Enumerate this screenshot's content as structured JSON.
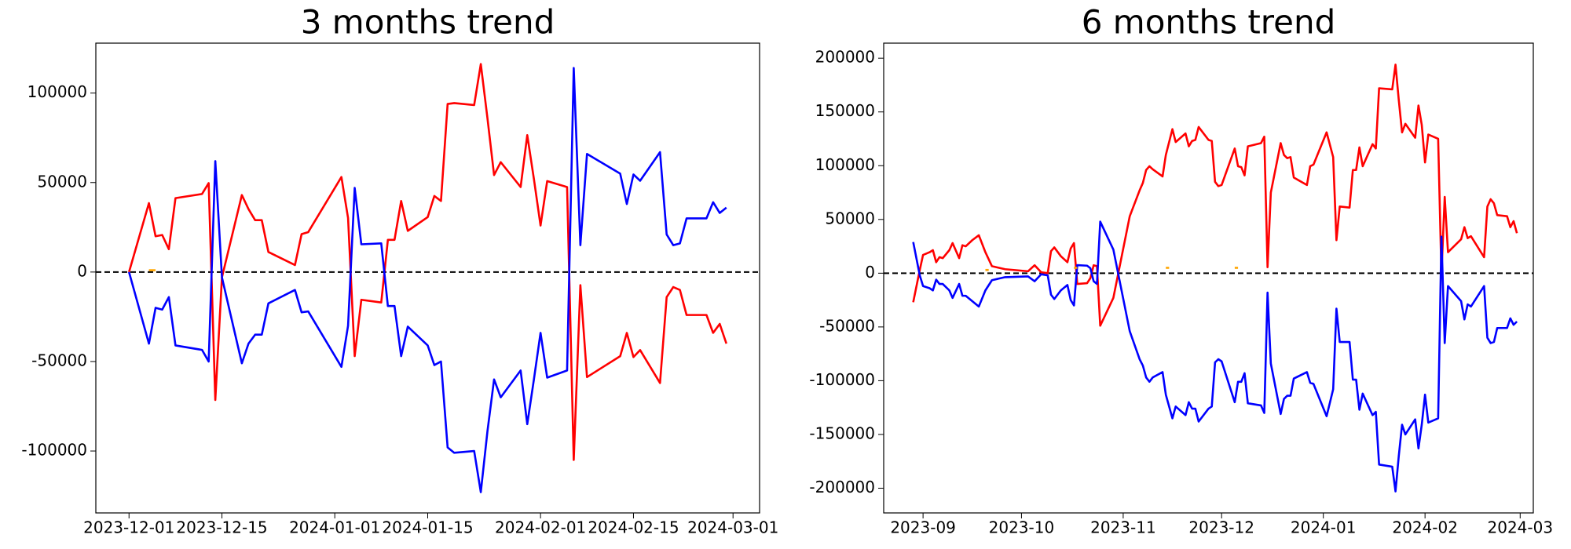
{
  "chart_data": [
    {
      "type": "line",
      "title": "3 months trend",
      "x": [
        "2023-12-01",
        "2023-12-04",
        "2023-12-05",
        "2023-12-06",
        "2023-12-07",
        "2023-12-08",
        "2023-12-12",
        "2023-12-13",
        "2023-12-14",
        "2023-12-15",
        "2023-12-18",
        "2023-12-19",
        "2023-12-20",
        "2023-12-21",
        "2023-12-22",
        "2023-12-26",
        "2023-12-27",
        "2023-12-28",
        "2024-01-02",
        "2024-01-03",
        "2024-01-04",
        "2024-01-05",
        "2024-01-08",
        "2024-01-09",
        "2024-01-10",
        "2024-01-11",
        "2024-01-12",
        "2024-01-15",
        "2024-01-16",
        "2024-01-17",
        "2024-01-18",
        "2024-01-19",
        "2024-01-22",
        "2024-01-23",
        "2024-01-24",
        "2024-01-25",
        "2024-01-26",
        "2024-01-29",
        "2024-01-30",
        "2024-01-31",
        "2024-02-01",
        "2024-02-02",
        "2024-02-05",
        "2024-02-06",
        "2024-02-07",
        "2024-02-08",
        "2024-02-13",
        "2024-02-14",
        "2024-02-15",
        "2024-02-16",
        "2024-02-19",
        "2024-02-20",
        "2024-02-21",
        "2024-02-22",
        "2024-02-23",
        "2024-02-26",
        "2024-02-27",
        "2024-02-28",
        "2024-02-29"
      ],
      "series": [
        {
          "color": "#ff0000",
          "values": [
            0,
            38500,
            20000,
            20700,
            12800,
            41300,
            43600,
            49700,
            -71500,
            -3000,
            43000,
            35200,
            29000,
            29000,
            11200,
            3900,
            21200,
            22300,
            53100,
            30200,
            -47000,
            -15500,
            -17000,
            18000,
            18000,
            39700,
            23000,
            30700,
            42500,
            39700,
            93900,
            94400,
            93300,
            116200,
            86000,
            54200,
            61400,
            47500,
            76500,
            52000,
            26000,
            50800,
            47500,
            -105000,
            -7300,
            -58700,
            -47000,
            -34000,
            -47500,
            -43600,
            -62000,
            -14000,
            -8400,
            -10000,
            -24000,
            -24000,
            -34000,
            -29000,
            -40000
          ]
        },
        {
          "color": "#0000ff",
          "values": [
            0,
            -40000,
            -20000,
            -21000,
            -14000,
            -41000,
            -43500,
            -50000,
            62000,
            -3000,
            -51000,
            -40000,
            -35000,
            -35000,
            -17500,
            -10000,
            -22500,
            -22000,
            -53000,
            -30000,
            47000,
            15500,
            16000,
            -19000,
            -19000,
            -47000,
            -30500,
            -41000,
            -52000,
            -50000,
            -98000,
            -101000,
            -100000,
            -123000,
            -89000,
            -60000,
            -70000,
            -55000,
            -85000,
            -60000,
            -34000,
            -59000,
            -55000,
            114000,
            15000,
            66000,
            55000,
            38000,
            54500,
            51000,
            67000,
            21000,
            15000,
            16000,
            30000,
            30000,
            39000,
            33000,
            36000
          ]
        },
        {
          "color": "#ffa500",
          "x": [
            "2023-12-04",
            "2023-12-05"
          ],
          "values": [
            1000,
            1000
          ]
        }
      ],
      "hline": 0,
      "xlim": [
        "2023-11-26",
        "2024-03-05"
      ],
      "xticks": [
        "2023-12-01",
        "2023-12-15",
        "2024-01-01",
        "2024-01-15",
        "2024-02-01",
        "2024-02-15",
        "2024-03-01"
      ],
      "ylim": [
        -134600,
        127900
      ],
      "yticks": [
        -100000,
        -50000,
        0,
        50000,
        100000
      ]
    },
    {
      "type": "line",
      "title": "6 months trend",
      "x": [
        "2023-08-29",
        "2023-08-31",
        "2023-09-01",
        "2023-09-03",
        "2023-09-04",
        "2023-09-05",
        "2023-09-06",
        "2023-09-07",
        "2023-09-09",
        "2023-09-10",
        "2023-09-12",
        "2023-09-13",
        "2023-09-14",
        "2023-09-16",
        "2023-09-18",
        "2023-09-20",
        "2023-09-22",
        "2023-09-26",
        "2023-10-03",
        "2023-10-05",
        "2023-10-07",
        "2023-10-09",
        "2023-10-10",
        "2023-10-11",
        "2023-10-13",
        "2023-10-15",
        "2023-10-16",
        "2023-10-17",
        "2023-10-18",
        "2023-10-21",
        "2023-10-22",
        "2023-10-23",
        "2023-10-24",
        "2023-10-25",
        "2023-10-29",
        "2023-11-03",
        "2023-11-06",
        "2023-11-07",
        "2023-11-08",
        "2023-11-09",
        "2023-11-10",
        "2023-11-13",
        "2023-11-14",
        "2023-11-16",
        "2023-11-17",
        "2023-11-20",
        "2023-11-21",
        "2023-11-22",
        "2023-11-23",
        "2023-11-24",
        "2023-11-27",
        "2023-11-28",
        "2023-11-29",
        "2023-11-30",
        "2023-12-01",
        "2023-12-05",
        "2023-12-06",
        "2023-12-07",
        "2023-12-08",
        "2023-12-09",
        "2023-12-13",
        "2023-12-14",
        "2023-12-15",
        "2023-12-16",
        "2023-12-19",
        "2023-12-20",
        "2023-12-21",
        "2023-12-22",
        "2023-12-23",
        "2023-12-27",
        "2023-12-28",
        "2023-12-29",
        "2024-01-02",
        "2024-01-04",
        "2024-01-05",
        "2024-01-06",
        "2024-01-09",
        "2024-01-10",
        "2024-01-11",
        "2024-01-12",
        "2024-01-13",
        "2024-01-16",
        "2024-01-17",
        "2024-01-18",
        "2024-01-22",
        "2024-01-23",
        "2024-01-24",
        "2024-01-25",
        "2024-01-26",
        "2024-01-29",
        "2024-01-30",
        "2024-01-31",
        "2024-02-01",
        "2024-02-02",
        "2024-02-05",
        "2024-02-06",
        "2024-02-07",
        "2024-02-08",
        "2024-02-12",
        "2024-02-13",
        "2024-02-14",
        "2024-02-15",
        "2024-02-19",
        "2024-02-20",
        "2024-02-21",
        "2024-02-22",
        "2024-02-23",
        "2024-02-26",
        "2024-02-27",
        "2024-02-28",
        "2024-02-29"
      ],
      "series": [
        {
          "color": "#ff0000",
          "values": [
            -27000,
            3000,
            17000,
            19500,
            21400,
            10200,
            14900,
            14000,
            21400,
            28000,
            14000,
            26000,
            25000,
            30700,
            35300,
            19500,
            6500,
            3700,
            1800,
            7400,
            900,
            0,
            20500,
            24000,
            15800,
            10200,
            23000,
            28000,
            -10000,
            -9300,
            -4600,
            7400,
            6500,
            -48900,
            -23000,
            53000,
            77000,
            84000,
            96000,
            99500,
            96700,
            90000,
            110000,
            134000,
            122000,
            130000,
            118000,
            123000,
            124000,
            136000,
            124000,
            123000,
            85000,
            81000,
            82000,
            116000,
            99500,
            98600,
            91000,
            118000,
            121000,
            127000,
            5600,
            75000,
            121000,
            110000,
            107000,
            108000,
            89000,
            82000,
            99500,
            101000,
            131000,
            108000,
            30700,
            62000,
            61000,
            96000,
            96000,
            117000,
            99500,
            120000,
            116000,
            172000,
            171000,
            194000,
            161000,
            131000,
            139000,
            126000,
            156000,
            138000,
            103000,
            129000,
            125000,
            -1000,
            71000,
            19500,
            31600,
            42800,
            32600,
            34400,
            14900,
            62000,
            68800,
            65000,
            54000,
            53000,
            42800,
            48400,
            37200
          ]
        },
        {
          "color": "#0000ff",
          "values": [
            29000,
            -2000,
            -12000,
            -14000,
            -16000,
            -6000,
            -10000,
            -10000,
            -16000,
            -23000,
            -10000,
            -21000,
            -21000,
            -26000,
            -31000,
            -16000,
            -6500,
            -3700,
            -3000,
            -7500,
            -1000,
            -2000,
            -20000,
            -24000,
            -16000,
            -11000,
            -25000,
            -30000,
            7500,
            7000,
            4600,
            -7500,
            -10000,
            48000,
            22000,
            -54000,
            -80000,
            -86000,
            -97000,
            -101000,
            -97000,
            -92000,
            -113000,
            -135000,
            -124000,
            -132000,
            -120000,
            -126000,
            -126000,
            -138000,
            -126000,
            -124000,
            -83000,
            -80000,
            -82000,
            -120000,
            -101000,
            -101000,
            -93000,
            -121000,
            -123000,
            -130000,
            -18000,
            -84000,
            -131000,
            -117000,
            -114000,
            -114000,
            -98000,
            -92000,
            -102000,
            -103000,
            -133000,
            -108000,
            -33000,
            -64000,
            -64000,
            -99000,
            -99000,
            -127000,
            -112000,
            -132000,
            -129000,
            -178000,
            -180000,
            -203000,
            -170000,
            -141000,
            -150000,
            -136000,
            -163000,
            -141000,
            -113000,
            -139000,
            -135000,
            34000,
            -65000,
            -12000,
            -26000,
            -43000,
            -29000,
            -31000,
            -12000,
            -60000,
            -65000,
            -64000,
            -51000,
            -51000,
            -42000,
            -48000,
            -45000
          ]
        },
        {
          "color": "#ffa500",
          "x": [
            "2023-09-20",
            "2023-09-21",
            "2023-09-22",
            "2023-10-17",
            "2023-10-18",
            "2023-10-19",
            "2023-11-14",
            "2023-11-15",
            "2023-11-16",
            "2023-12-05",
            "2023-12-06"
          ],
          "values": [
            3000,
            3000,
            null,
            5000,
            5000,
            null,
            5000,
            5000,
            null,
            5000,
            5000
          ]
        }
      ],
      "hline": 0,
      "xlim": [
        "2023-08-20",
        "2024-03-05"
      ],
      "xticks": [
        "2023-09",
        "2023-10",
        "2023-11",
        "2023-12",
        "2024-01",
        "2024-02",
        "2024-03"
      ],
      "ylim": [
        -223000,
        214000
      ],
      "yticks": [
        -200000,
        -150000,
        -100000,
        -50000,
        0,
        50000,
        100000,
        150000,
        200000
      ]
    }
  ]
}
